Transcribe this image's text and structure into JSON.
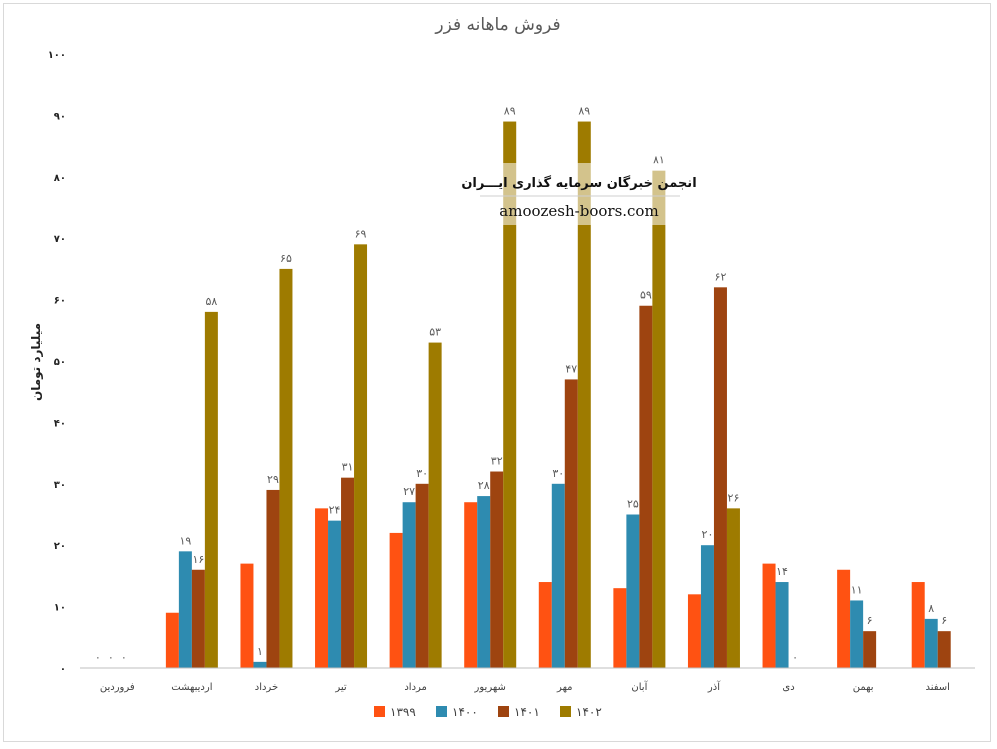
{
  "chart_data": {
    "type": "bar",
    "title": "فروش ماهانه فزر",
    "ylabel": "میلیارد تومان",
    "xlabel": "",
    "ylim": [
      0,
      100
    ],
    "yticks": [
      "۰",
      "۱۰",
      "۲۰",
      "۳۰",
      "۴۰",
      "۵۰",
      "۶۰",
      "۷۰",
      "۸۰",
      "۹۰",
      "۱۰۰"
    ],
    "grid": false,
    "legend_position": "bottom",
    "categories": [
      "فروردین",
      "اردیبهشت",
      "خرداد",
      "تیر",
      "مرداد",
      "شهریور",
      "مهر",
      "آبان",
      "آذر",
      "دی",
      "بهمن",
      "اسفند"
    ],
    "series": [
      {
        "name": "۱۳۹۹",
        "color": "#ff5212",
        "values": [
          0,
          9,
          17,
          26,
          22,
          27,
          14,
          13,
          12,
          17,
          16,
          14
        ],
        "labels": [
          "۰",
          "",
          "",
          "",
          "",
          "",
          "",
          "",
          "",
          "",
          "",
          ""
        ]
      },
      {
        "name": "۱۴۰۰",
        "color": "#2e8bb0",
        "values": [
          0,
          19,
          1,
          24,
          27,
          28,
          30,
          25,
          20,
          14,
          11,
          8
        ],
        "labels": [
          "۰",
          "۱۹",
          "۱",
          "۲۴",
          "۲۷",
          "۲۸",
          "۳۰",
          "۲۵",
          "۲۰",
          "۱۴",
          "۱۱",
          "۸"
        ]
      },
      {
        "name": "۱۴۰۱",
        "color": "#9e4410",
        "values": [
          0,
          16,
          29,
          31,
          30,
          32,
          47,
          59,
          62,
          0,
          6,
          6
        ],
        "labels": [
          "۰",
          "۱۶",
          "۲۹",
          "۳۱",
          "۳۰",
          "۳۲",
          "۴۷",
          "۵۹",
          "۶۲",
          "۰",
          "۶",
          "۶"
        ]
      },
      {
        "name": "۱۴۰۲",
        "color": "#9e7b00",
        "values": [
          null,
          58,
          65,
          69,
          53,
          89,
          89,
          81,
          26,
          null,
          null,
          null
        ],
        "labels": [
          "",
          "۵۸",
          "۶۵",
          "۶۹",
          "۵۳",
          "۸۹",
          "۸۹",
          "۸۱",
          "۲۶",
          "",
          "",
          ""
        ]
      }
    ]
  },
  "watermark": {
    "title": "انجمن خبرگان سرمایه گذاری ایـــران",
    "url": "amoozesh-boors.com"
  }
}
